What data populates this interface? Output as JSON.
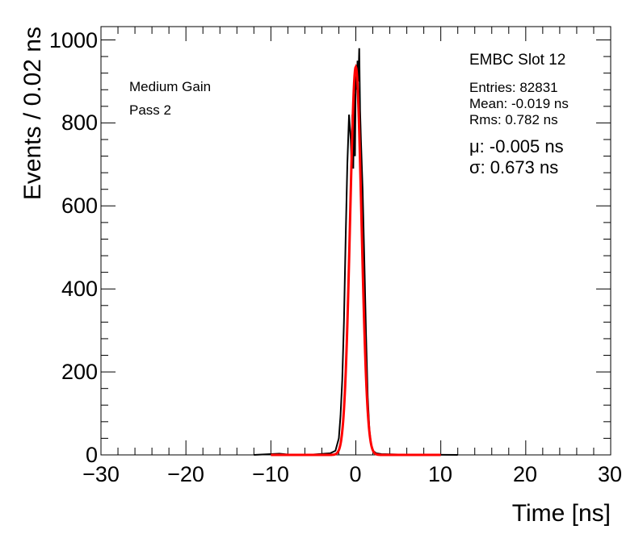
{
  "chart_data": {
    "type": "line",
    "title": "",
    "xlabel": "Time [ns]",
    "ylabel": "Events / 0.02 ns",
    "xlim": [
      -30,
      30
    ],
    "ylim": [
      0,
      1030
    ],
    "x_ticks": [
      "−30",
      "−20",
      "−10",
      "0",
      "10",
      "20",
      "30"
    ],
    "x_tick_values": [
      -30,
      -20,
      -10,
      0,
      10,
      20,
      30
    ],
    "y_ticks": [
      "0",
      "200",
      "400",
      "600",
      "800",
      "1000"
    ],
    "y_tick_values": [
      0,
      200,
      400,
      600,
      800,
      1000
    ],
    "grid": false,
    "series": [
      {
        "color": "#000000",
        "kind": "histogram",
        "x": [
          -12.0,
          -10.0,
          -9.0,
          -8.0,
          -5.0,
          -3.0,
          -2.4,
          -2.0,
          -1.8,
          -1.6,
          -1.4,
          -1.2,
          -1.0,
          -0.8,
          -0.6,
          -0.5,
          -0.4,
          -0.3,
          -0.2,
          -0.1,
          0.0,
          0.1,
          0.2,
          0.3,
          0.4,
          0.5,
          0.6,
          0.8,
          1.0,
          1.2,
          1.4,
          1.6,
          1.8,
          2.0,
          2.4,
          3.0,
          5.0,
          12.0
        ],
        "values": [
          0,
          2,
          3,
          1,
          1,
          4,
          10,
          40,
          95,
          180,
          320,
          520,
          700,
          820,
          760,
          700,
          820,
          690,
          870,
          720,
          930,
          880,
          950,
          900,
          980,
          830,
          760,
          640,
          470,
          290,
          140,
          60,
          25,
          10,
          4,
          2,
          1,
          0
        ]
      },
      {
        "color": "#ff0000",
        "kind": "gaussian-fit",
        "amplitude": 935,
        "mean": -0.005,
        "sigma": 0.673,
        "x_range": [
          -10,
          10
        ]
      }
    ],
    "annotations": {
      "left_lines": [
        "Medium Gain",
        "Pass 2"
      ],
      "stats_title": "EMBC Slot 12",
      "stats_lines": [
        "Entries: 82831",
        "Mean: -0.019 ns",
        "Rms: 0.782 ns"
      ],
      "fit_lines": [
        "μ: -0.005 ns",
        "σ: 0.673 ns"
      ]
    }
  }
}
